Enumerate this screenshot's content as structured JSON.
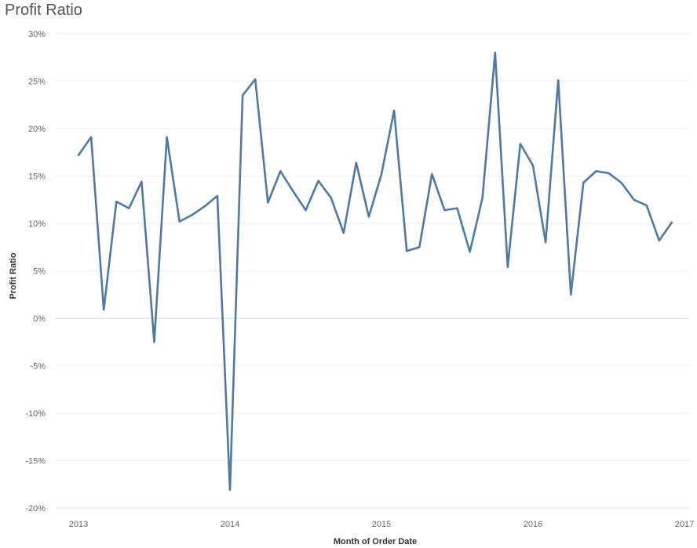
{
  "chart_data": {
    "type": "line",
    "title": "Profit Ratio",
    "xlabel": "Month of Order Date",
    "ylabel": "Profit Ratio",
    "x_start": "2013-01",
    "x_ticks": [
      "2013",
      "2014",
      "2015",
      "2016",
      "2017"
    ],
    "y_ticks": [
      "30%",
      "25%",
      "20%",
      "15%",
      "10%",
      "5%",
      "0%",
      "-5%",
      "-10%",
      "-15%",
      "-20%"
    ],
    "ylim": [
      -20,
      30
    ],
    "grid": true,
    "color": "#4e79a7",
    "series": [
      {
        "values": [
          17.2,
          19.1,
          0.9,
          12.3,
          11.6,
          14.4,
          -2.5,
          19.1,
          10.2,
          10.9,
          11.8,
          12.9,
          -18.1,
          23.5,
          25.2,
          12.2,
          15.5,
          13.4,
          11.4,
          14.5,
          12.7,
          9.0,
          16.4,
          10.7,
          15.2,
          21.9,
          7.1,
          7.5,
          15.2,
          11.4,
          11.6,
          7.0,
          12.7,
          28.0,
          5.4,
          18.4,
          16.1,
          8.0,
          25.1,
          2.5,
          14.3,
          15.5,
          15.3,
          14.3,
          12.5,
          11.9,
          8.2,
          10.1
        ]
      }
    ]
  }
}
